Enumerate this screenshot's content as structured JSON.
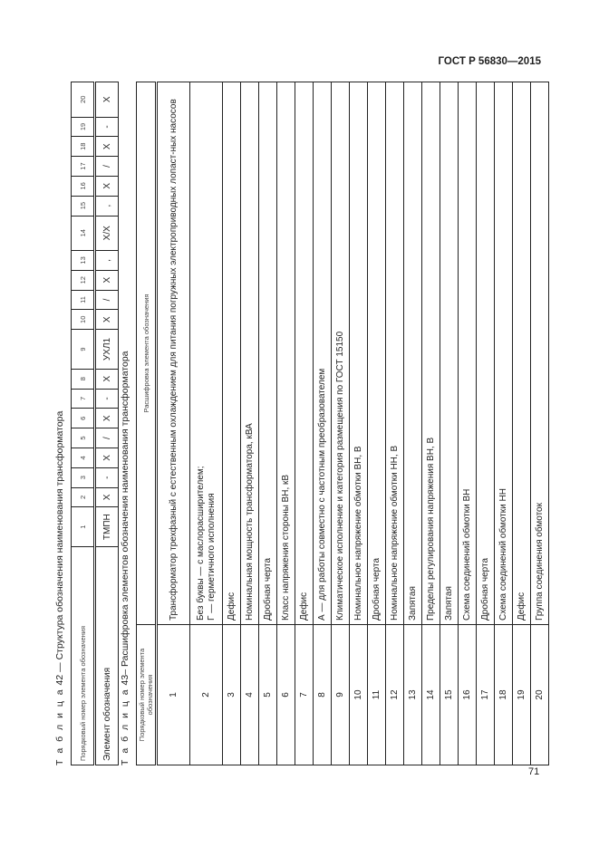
{
  "header": {
    "standard": "ГОСТ Р 56830—2015"
  },
  "page_number": "71",
  "table42": {
    "caption_prefix": "Т а б л и ц а",
    "caption_num": "42",
    "caption_text": "— Структура обозначения наименования трансформатора",
    "row_num_label": "Порядковый номер элемента обозначения",
    "row_elem_label": "Элемент обозначения",
    "numbers": [
      "1",
      "2",
      "3",
      "4",
      "5",
      "6",
      "7",
      "8",
      "9",
      "10",
      "11",
      "12",
      "13",
      "14",
      "15",
      "16",
      "17",
      "18",
      "19",
      "20"
    ],
    "elements": [
      "ТМПН",
      "Х",
      "-",
      "Х",
      "/",
      "Х",
      "-",
      "Х",
      "УХЛ1",
      "Х",
      "/",
      "Х",
      ",",
      "Х/Х",
      ",",
      "Х",
      "/",
      "Х",
      "-",
      "Х"
    ]
  },
  "table43": {
    "caption_prefix": "Т а б л и ц а",
    "caption_num": "43",
    "caption_text": "– Расшифровка элементов обозначения наименования трансформатора",
    "col_num": "Порядковый номер элемента обозначения",
    "col_desc": "Расшифровка элемента обозначения",
    "rows": [
      {
        "n": "1",
        "d": "Трансформатор трехфазный с естественным охлаждением для питания погружных электроприводных лопаст-ных насосов"
      },
      {
        "n": "2",
        "d": "Без буквы — с маслорасширителем;\nГ — герметичного исполнения"
      },
      {
        "n": "3",
        "d": "Дефис"
      },
      {
        "n": "4",
        "d": "Номинальная мощность трансформатора, кВА"
      },
      {
        "n": "5",
        "d": "Дробная черта"
      },
      {
        "n": "6",
        "d": "Класс напряжения стороны ВН, кВ"
      },
      {
        "n": "7",
        "d": "Дефис"
      },
      {
        "n": "8",
        "d": "А — для работы совместно с частотным преобразователем"
      },
      {
        "n": "9",
        "d": "Климатическое исполнение и категория размещения по ГОСТ 15150"
      },
      {
        "n": "10",
        "d": "Номинальное напряжение обмотки ВН, В"
      },
      {
        "n": "11",
        "d": "Дробная черта"
      },
      {
        "n": "12",
        "d": "Номинальное напряжение обмотки НН, В"
      },
      {
        "n": "13",
        "d": "Запятая"
      },
      {
        "n": "14",
        "d": "Пределы регулирования напряжения ВН, В"
      },
      {
        "n": "15",
        "d": "Запятая"
      },
      {
        "n": "16",
        "d": "Схема соединений обмотки ВН"
      },
      {
        "n": "17",
        "d": "Дробная черта"
      },
      {
        "n": "18",
        "d": "Схема соединений обмотки НН"
      },
      {
        "n": "19",
        "d": "Дефис"
      },
      {
        "n": "20",
        "d": "Группа соединения обмоток"
      }
    ]
  }
}
